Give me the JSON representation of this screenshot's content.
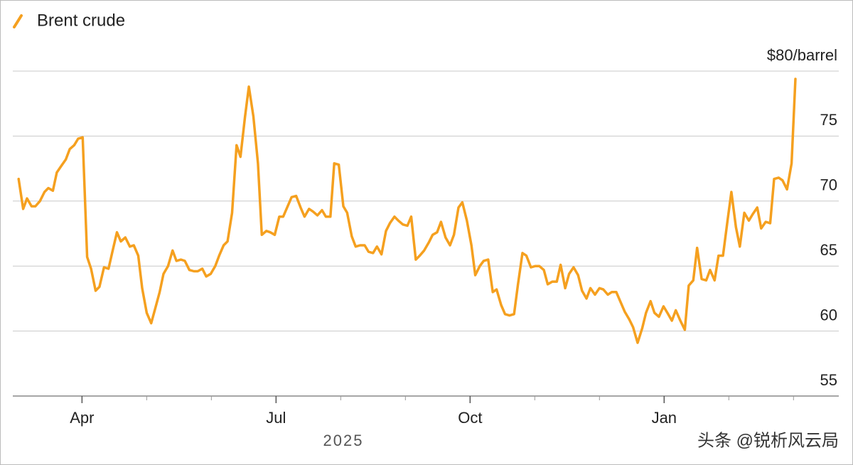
{
  "chart_data": {
    "type": "line",
    "x": [
      3.02,
      3.09,
      3.15,
      3.22,
      3.28,
      3.35,
      3.42,
      3.48,
      3.55,
      3.61,
      3.68,
      3.75,
      3.81,
      3.88,
      3.94,
      4.01,
      4.08,
      4.14,
      4.21,
      4.27,
      4.34,
      4.41,
      4.47,
      4.54,
      4.6,
      4.67,
      4.74,
      4.8,
      4.87,
      4.93,
      5.0,
      5.07,
      5.13,
      5.2,
      5.26,
      5.33,
      5.4,
      5.46,
      5.53,
      5.59,
      5.66,
      5.73,
      5.79,
      5.86,
      5.92,
      5.99,
      6.06,
      6.12,
      6.19,
      6.25,
      6.32,
      6.39,
      6.45,
      6.52,
      6.58,
      6.65,
      6.72,
      6.78,
      6.85,
      6.91,
      6.98,
      7.05,
      7.11,
      7.18,
      7.24,
      7.31,
      7.38,
      7.44,
      7.51,
      7.57,
      7.64,
      7.71,
      7.77,
      7.84,
      7.9,
      7.97,
      8.04,
      8.1,
      8.17,
      8.23,
      8.3,
      8.37,
      8.43,
      8.5,
      8.56,
      8.63,
      8.7,
      8.76,
      8.83,
      8.89,
      8.96,
      9.03,
      9.09,
      9.16,
      9.22,
      9.29,
      9.36,
      9.42,
      9.49,
      9.55,
      9.62,
      9.69,
      9.75,
      9.82,
      9.88,
      9.95,
      10.02,
      10.08,
      10.15,
      10.21,
      10.28,
      10.35,
      10.41,
      10.48,
      10.54,
      10.61,
      10.68,
      10.74,
      10.81,
      10.87,
      10.94,
      11.01,
      11.07,
      11.14,
      11.2,
      11.27,
      11.34,
      11.4,
      11.47,
      11.53,
      11.6,
      11.67,
      11.73,
      11.8,
      11.86,
      11.93,
      12.0,
      12.06,
      12.13,
      12.19,
      12.26,
      12.33,
      12.39,
      12.46,
      12.52,
      12.59,
      12.66,
      12.72,
      12.79,
      12.85,
      12.92,
      12.99,
      13.05,
      13.12,
      13.18,
      13.25,
      13.32,
      13.38,
      13.45,
      13.51,
      13.58,
      13.65,
      13.71,
      13.78,
      13.84,
      13.91,
      13.98,
      14.04,
      14.11,
      14.17,
      14.24,
      14.31,
      14.37,
      14.44,
      14.5,
      14.57,
      14.64,
      14.7,
      14.77,
      14.83,
      14.9,
      14.97,
      15.03
    ],
    "series": [
      {
        "name": "Brent crude",
        "color": "#f5a01f",
        "values": [
          71.7,
          69.4,
          70.2,
          69.6,
          69.6,
          70.0,
          70.7,
          71.0,
          70.8,
          72.2,
          72.7,
          73.2,
          74.0,
          74.3,
          74.8,
          74.9,
          65.7,
          64.8,
          63.1,
          63.4,
          64.9,
          64.8,
          66.1,
          67.6,
          66.9,
          67.2,
          66.5,
          66.6,
          65.8,
          63.3,
          61.4,
          60.6,
          61.7,
          63.0,
          64.4,
          65.0,
          66.2,
          65.4,
          65.5,
          65.4,
          64.7,
          64.6,
          64.6,
          64.8,
          64.2,
          64.4,
          65.0,
          65.8,
          66.6,
          66.9,
          69.1,
          74.3,
          73.4,
          76.5,
          78.8,
          76.5,
          72.9,
          67.4,
          67.7,
          67.6,
          67.4,
          68.8,
          68.8,
          69.6,
          70.3,
          70.4,
          69.5,
          68.8,
          69.4,
          69.2,
          68.9,
          69.3,
          68.8,
          68.8,
          72.9,
          72.8,
          69.6,
          69.1,
          67.3,
          66.5,
          66.6,
          66.6,
          66.1,
          66.0,
          66.5,
          65.9,
          67.7,
          68.3,
          68.8,
          68.5,
          68.2,
          68.1,
          68.8,
          65.5,
          65.8,
          66.2,
          66.8,
          67.4,
          67.6,
          68.4,
          67.2,
          66.6,
          67.4,
          69.5,
          69.9,
          68.5,
          66.6,
          64.3,
          65.0,
          65.4,
          65.5,
          63.0,
          63.2,
          62.0,
          61.3,
          61.2,
          61.3,
          63.6,
          66.0,
          65.8,
          64.9,
          65.0,
          65.0,
          64.7,
          63.6,
          63.8,
          63.8,
          65.1,
          63.3,
          64.4,
          64.9,
          64.3,
          63.1,
          62.5,
          63.3,
          62.8,
          63.3,
          63.2,
          62.8,
          63.0,
          63.0,
          62.2,
          61.5,
          60.9,
          60.3,
          59.1,
          60.2,
          61.4,
          62.3,
          61.4,
          61.1,
          61.9,
          61.4,
          60.8,
          61.6,
          60.8,
          60.1,
          63.5,
          63.9,
          66.4,
          64.0,
          63.9,
          64.7,
          63.9,
          65.8,
          65.8,
          68.5,
          70.7,
          68.0,
          66.5,
          69.1,
          68.5,
          69.0,
          69.5,
          67.9,
          68.4,
          68.3,
          71.7,
          71.8,
          71.6,
          70.9,
          72.9,
          79.4
        ]
      }
    ],
    "xlim": [
      2.93,
      15.7
    ],
    "xticks": [
      {
        "value": 4,
        "label": "Apr"
      },
      {
        "value": 7,
        "label": "Jul"
      },
      {
        "value": 10,
        "label": "Oct"
      },
      {
        "value": 13,
        "label": "Jan"
      }
    ],
    "x_minor_ticks": [
      5,
      6,
      8,
      9,
      11,
      12,
      14,
      15
    ],
    "x_axis_year": "2025",
    "ylim": [
      55,
      80
    ],
    "yticks": [
      55,
      60,
      65,
      70,
      75,
      {
        "value": 80,
        "label": "$80/barrel"
      }
    ],
    "grid": true,
    "watermark": "头条 @锐析风云局"
  }
}
